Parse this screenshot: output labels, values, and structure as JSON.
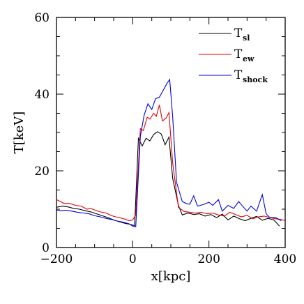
{
  "chart_data": {
    "type": "line",
    "xlabel": "x[kpc]",
    "ylabel": "T[keV]",
    "xlim": [
      -200,
      400
    ],
    "ylim": [
      0,
      60
    ],
    "x_ticks": [
      "-200",
      "0",
      "200",
      "400"
    ],
    "y_ticks": [
      "0",
      "20",
      "40",
      "60"
    ],
    "legend_position": "top-right",
    "series": [
      {
        "name": "T_sl",
        "label_main": "T",
        "label_sub": "sl",
        "color": "#000000",
        "points": [
          [
            -200,
            10.5
          ],
          [
            -185,
            10.8
          ],
          [
            -170,
            10.6
          ],
          [
            -155,
            10.2
          ],
          [
            -140,
            10.0
          ],
          [
            -125,
            9.6
          ],
          [
            -110,
            9.3
          ],
          [
            -95,
            8.8
          ],
          [
            -80,
            8.3
          ],
          [
            -65,
            7.8
          ],
          [
            -50,
            7.2
          ],
          [
            -35,
            6.7
          ],
          [
            -20,
            6.3
          ],
          [
            -5,
            6.0
          ],
          [
            5,
            5.7
          ],
          [
            15,
            28.5
          ],
          [
            25,
            26.5
          ],
          [
            35,
            28.5
          ],
          [
            45,
            27.8
          ],
          [
            55,
            29.5
          ],
          [
            65,
            30.2
          ],
          [
            75,
            29.6
          ],
          [
            85,
            26.8
          ],
          [
            95,
            28.8
          ],
          [
            105,
            18.0
          ],
          [
            120,
            11.0
          ],
          [
            130,
            8.5
          ],
          [
            145,
            9.0
          ],
          [
            160,
            8.6
          ],
          [
            175,
            8.8
          ],
          [
            190,
            8.2
          ],
          [
            205,
            8.6
          ],
          [
            220,
            7.8
          ],
          [
            235,
            8.7
          ],
          [
            250,
            7.2
          ],
          [
            265,
            8.2
          ],
          [
            280,
            7.5
          ],
          [
            295,
            7.0
          ],
          [
            310,
            7.6
          ],
          [
            325,
            8.1
          ],
          [
            340,
            7.1
          ],
          [
            355,
            7.6
          ],
          [
            370,
            7.2
          ],
          [
            385,
            5.6
          ]
        ]
      },
      {
        "name": "T_ew",
        "label_main": "T",
        "label_sub": "ew",
        "color": "#e00000",
        "points": [
          [
            -200,
            12.5
          ],
          [
            -190,
            12.0
          ],
          [
            -180,
            11.5
          ],
          [
            -165,
            11.5
          ],
          [
            -150,
            11.0
          ],
          [
            -135,
            10.8
          ],
          [
            -120,
            10.0
          ],
          [
            -110,
            10.2
          ],
          [
            -100,
            9.8
          ],
          [
            -85,
            9.3
          ],
          [
            -70,
            9.0
          ],
          [
            -55,
            8.3
          ],
          [
            -45,
            8.0
          ],
          [
            -35,
            7.8
          ],
          [
            -20,
            7.4
          ],
          [
            -10,
            7.0
          ],
          [
            0,
            7.2
          ],
          [
            8,
            8.5
          ],
          [
            20,
            31.0
          ],
          [
            28,
            30.5
          ],
          [
            38,
            34.0
          ],
          [
            45,
            33.5
          ],
          [
            55,
            35.0
          ],
          [
            62,
            34.2
          ],
          [
            70,
            37.2
          ],
          [
            78,
            33.0
          ],
          [
            88,
            33.8
          ],
          [
            95,
            35.2
          ],
          [
            105,
            22.0
          ],
          [
            120,
            10.5
          ],
          [
            135,
            9.4
          ],
          [
            150,
            9.2
          ],
          [
            165,
            9.0
          ],
          [
            180,
            9.2
          ],
          [
            195,
            8.8
          ],
          [
            210,
            9.0
          ],
          [
            225,
            8.5
          ],
          [
            240,
            8.2
          ],
          [
            255,
            9.2
          ],
          [
            270,
            8.6
          ],
          [
            285,
            8.0
          ],
          [
            300,
            8.4
          ],
          [
            315,
            7.5
          ],
          [
            330,
            8.0
          ],
          [
            345,
            8.2
          ],
          [
            360,
            7.8
          ],
          [
            375,
            7.5
          ],
          [
            390,
            7.3
          ],
          [
            400,
            7.0
          ]
        ]
      },
      {
        "name": "T_shock",
        "label_main": "T",
        "label_sub": "shock",
        "color": "#0000dd",
        "points": [
          [
            -200,
            9.8
          ],
          [
            -190,
            9.6
          ],
          [
            -175,
            9.7
          ],
          [
            -160,
            9.5
          ],
          [
            -145,
            9.2
          ],
          [
            -130,
            9.0
          ],
          [
            -115,
            8.8
          ],
          [
            -100,
            8.3
          ],
          [
            -85,
            8.0
          ],
          [
            -70,
            7.6
          ],
          [
            -55,
            7.3
          ],
          [
            -40,
            6.9
          ],
          [
            -25,
            6.6
          ],
          [
            -10,
            6.2
          ],
          [
            0,
            5.6
          ],
          [
            8,
            5.4
          ],
          [
            20,
            29.0
          ],
          [
            30,
            34.5
          ],
          [
            40,
            37.5
          ],
          [
            50,
            36.0
          ],
          [
            60,
            38.8
          ],
          [
            70,
            39.2
          ],
          [
            80,
            41.0
          ],
          [
            90,
            42.8
          ],
          [
            97,
            43.8
          ],
          [
            105,
            34.0
          ],
          [
            115,
            17.0
          ],
          [
            130,
            12.0
          ],
          [
            140,
            11.5
          ],
          [
            150,
            11.3
          ],
          [
            160,
            13.5
          ],
          [
            170,
            10.8
          ],
          [
            185,
            11.2
          ],
          [
            200,
            11.8
          ],
          [
            210,
            11.0
          ],
          [
            225,
            12.5
          ],
          [
            235,
            9.5
          ],
          [
            250,
            11.0
          ],
          [
            265,
            10.2
          ],
          [
            278,
            12.0
          ],
          [
            290,
            10.6
          ],
          [
            300,
            9.5
          ],
          [
            310,
            10.8
          ],
          [
            325,
            9.5
          ],
          [
            340,
            13.8
          ],
          [
            350,
            8.8
          ],
          [
            360,
            7.8
          ],
          [
            375,
            7.8
          ],
          [
            390,
            7.0
          ]
        ]
      }
    ]
  }
}
